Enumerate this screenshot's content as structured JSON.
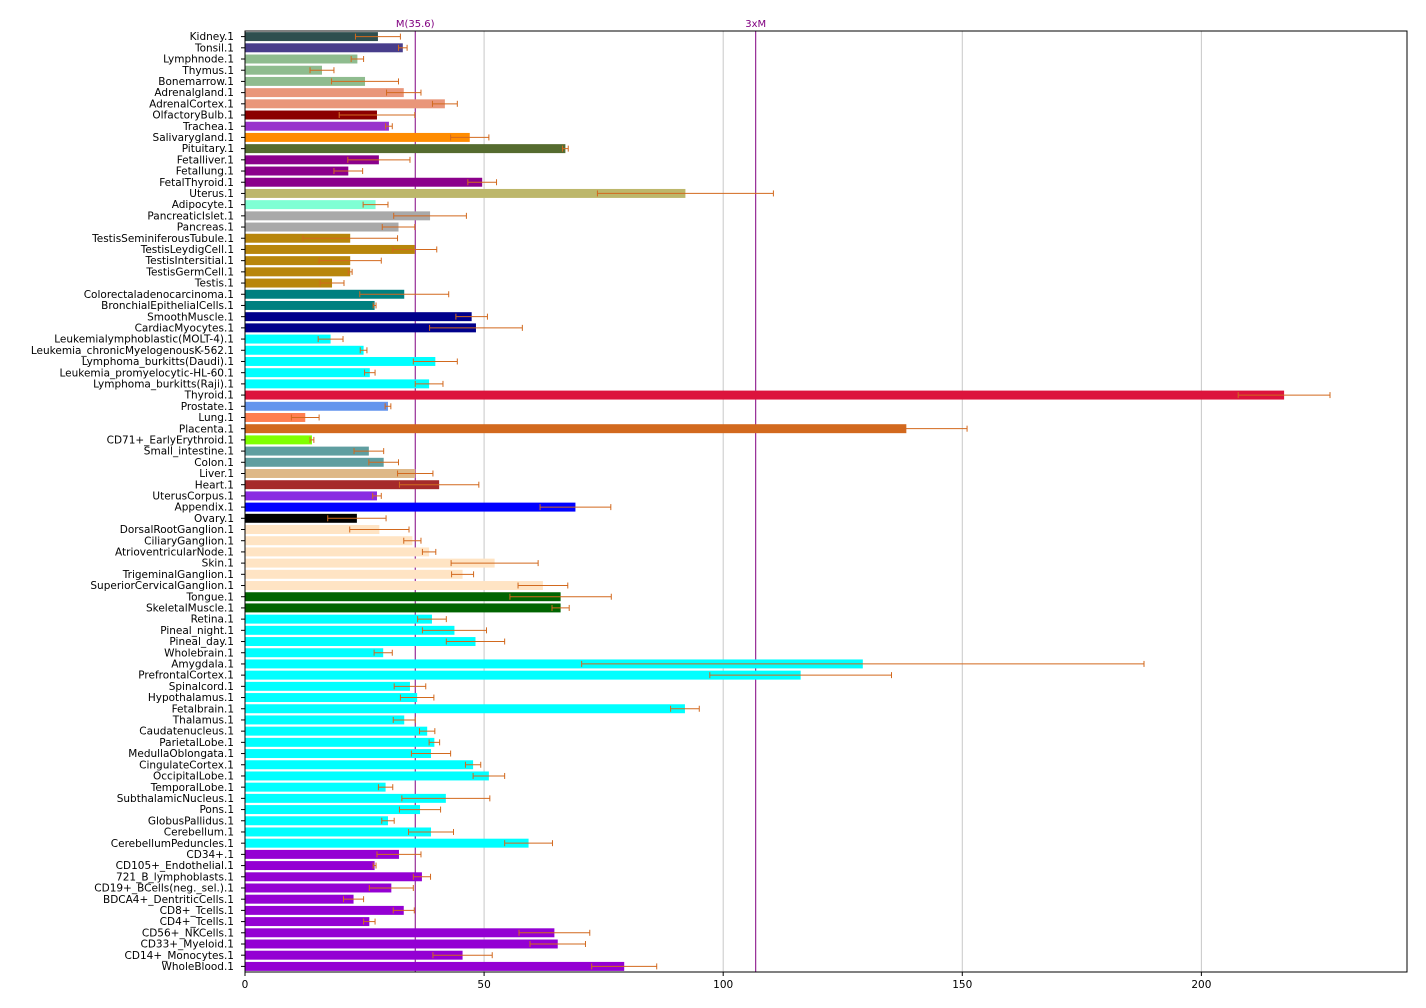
{
  "chart_data": {
    "type": "bar",
    "orientation": "horizontal",
    "title": "",
    "xlabel": "",
    "ylabel": "",
    "xlim": [
      0,
      243
    ],
    "xticks": [
      0,
      50,
      100,
      150,
      200
    ],
    "grid": "vertical",
    "legend": "none",
    "error_bar_color": "#d2691e",
    "reference_lines": [
      {
        "label": "M(35.6)",
        "value": 35.6,
        "color": "#800080"
      },
      {
        "label": "3xM",
        "value": 106.8,
        "color": "#800080"
      }
    ],
    "bars": [
      {
        "label": "Kidney.1",
        "value": 27.8,
        "err": 4.7,
        "color": "#2f4f4f"
      },
      {
        "label": "Tonsil.1",
        "value": 33.0,
        "err": 0.9,
        "color": "#483d8b"
      },
      {
        "label": "Lymphnode.1",
        "value": 23.5,
        "err": 1.3,
        "color": "#8fbc8f"
      },
      {
        "label": "Thymus.1",
        "value": 16.1,
        "err": 2.5,
        "color": "#8fbc8f"
      },
      {
        "label": "Bonemarrow.1",
        "value": 25.1,
        "err": 7.0,
        "color": "#8fbc8f"
      },
      {
        "label": "Adrenalgland.1",
        "value": 33.2,
        "err": 3.6,
        "color": "#e9967a"
      },
      {
        "label": "AdrenalCortex.1",
        "value": 41.8,
        "err": 2.6,
        "color": "#e9967a"
      },
      {
        "label": "OlfactoryBulb.1",
        "value": 27.6,
        "err": 7.9,
        "color": "#8b0000"
      },
      {
        "label": "Trachea.1",
        "value": 30.1,
        "err": 0.7,
        "color": "#9932cc"
      },
      {
        "label": "Salivarygland.1",
        "value": 47.0,
        "err": 4.0,
        "color": "#ff8c00"
      },
      {
        "label": "Pituitary.1",
        "value": 67.0,
        "err": 0.6,
        "color": "#556b2f"
      },
      {
        "label": "Fetalliver.1",
        "value": 28.0,
        "err": 6.5,
        "color": "#8b008b"
      },
      {
        "label": "Fetallung.1",
        "value": 21.6,
        "err": 3.0,
        "color": "#8b008b"
      },
      {
        "label": "FetalThyroid.1",
        "value": 49.6,
        "err": 3.0,
        "color": "#8b008b"
      },
      {
        "label": "Uterus.1",
        "value": 92.1,
        "err": 18.4,
        "color": "#bdb76b"
      },
      {
        "label": "Adipocyte.1",
        "value": 27.3,
        "err": 2.6,
        "color": "#7fffd4"
      },
      {
        "label": "PancreaticIslet.1",
        "value": 38.7,
        "err": 7.6,
        "color": "#a9a9a9"
      },
      {
        "label": "Pancreas.1",
        "value": 32.1,
        "err": 3.4,
        "color": "#a9a9a9"
      },
      {
        "label": "TestisSeminiferousTubule.1",
        "value": 22.0,
        "err": 9.9,
        "color": "#b8860b"
      },
      {
        "label": "TestisLeydigCell.1",
        "value": 35.5,
        "err": 4.6,
        "color": "#b8860b"
      },
      {
        "label": "TestisIntersitial.1",
        "value": 22.0,
        "err": 6.5,
        "color": "#b8860b"
      },
      {
        "label": "TestisGermCell.1",
        "value": 22.0,
        "err": 0.4,
        "color": "#b8860b"
      },
      {
        "label": "Testis.1",
        "value": 18.2,
        "err": 2.5,
        "color": "#b8860b"
      },
      {
        "label": "Colorectaladenocarcinoma.1",
        "value": 33.3,
        "err": 9.3,
        "color": "#008080"
      },
      {
        "label": "BronchialEpithelialCells.1",
        "value": 27.1,
        "err": 0.3,
        "color": "#008080"
      },
      {
        "label": "SmoothMuscle.1",
        "value": 47.4,
        "err": 3.3,
        "color": "#00008b"
      },
      {
        "label": "CardiacMyocytes.1",
        "value": 48.3,
        "err": 9.7,
        "color": "#00008b"
      },
      {
        "label": "Leukemialymphoblastic(MOLT-4).1",
        "value": 17.9,
        "err": 2.6,
        "color": "#00ffff"
      },
      {
        "label": "Leukemia_chronicMyelogenousK-562.1",
        "value": 24.8,
        "err": 0.7,
        "color": "#00ffff"
      },
      {
        "label": "Lymphoma_burkitts(Daudi).1",
        "value": 39.8,
        "err": 4.6,
        "color": "#00ffff"
      },
      {
        "label": "Leukemia_promyelocytic-HL-60.1",
        "value": 26.1,
        "err": 1.1,
        "color": "#00ffff"
      },
      {
        "label": "Lymphoma_burkitts(Raji).1",
        "value": 38.5,
        "err": 2.9,
        "color": "#00ffff"
      },
      {
        "label": "Thyroid.1",
        "value": 217.3,
        "err": 9.6,
        "color": "#dc143c"
      },
      {
        "label": "Prostate.1",
        "value": 29.9,
        "err": 0.6,
        "color": "#6495ed"
      },
      {
        "label": "Lung.1",
        "value": 12.6,
        "err": 2.9,
        "color": "#ff7f50"
      },
      {
        "label": "Placenta.1",
        "value": 138.3,
        "err": 12.7,
        "color": "#d2691e"
      },
      {
        "label": "CD71+_EarlyErythroid.1",
        "value": 14.0,
        "err": 0.4,
        "color": "#7fff00"
      },
      {
        "label": "Small_intestine.1",
        "value": 25.9,
        "err": 3.1,
        "color": "#5f9ea0"
      },
      {
        "label": "Colon.1",
        "value": 29.0,
        "err": 3.1,
        "color": "#5f9ea0"
      },
      {
        "label": "Liver.1",
        "value": 35.6,
        "err": 3.7,
        "color": "#deb887"
      },
      {
        "label": "Heart.1",
        "value": 40.6,
        "err": 8.3,
        "color": "#a52a2a"
      },
      {
        "label": "UterusCorpus.1",
        "value": 27.6,
        "err": 0.9,
        "color": "#8a2be2"
      },
      {
        "label": "Appendix.1",
        "value": 69.1,
        "err": 7.4,
        "color": "#0000ff"
      },
      {
        "label": "Ovary.1",
        "value": 23.4,
        "err": 6.1,
        "color": "#000000"
      },
      {
        "label": "DorsalRootGanglion.1",
        "value": 28.1,
        "err": 6.2,
        "color": "#ffe4c4"
      },
      {
        "label": "CiliaryGanglion.1",
        "value": 35.0,
        "err": 1.8,
        "color": "#ffe4c4"
      },
      {
        "label": "AtrioventricularNode.1",
        "value": 38.5,
        "err": 1.4,
        "color": "#ffe4c4"
      },
      {
        "label": "Skin.1",
        "value": 52.2,
        "err": 9.1,
        "color": "#ffe4c4"
      },
      {
        "label": "TrigeminalGanglion.1",
        "value": 45.5,
        "err": 2.3,
        "color": "#ffe4c4"
      },
      {
        "label": "SuperiorCervicalGanglion.1",
        "value": 62.3,
        "err": 5.2,
        "color": "#ffe4c4"
      },
      {
        "label": "Tongue.1",
        "value": 66.0,
        "err": 10.6,
        "color": "#006400"
      },
      {
        "label": "SkeletalMuscle.1",
        "value": 66.0,
        "err": 1.8,
        "color": "#006400"
      },
      {
        "label": "Retina.1",
        "value": 39.1,
        "err": 3.0,
        "color": "#00ffff"
      },
      {
        "label": "Pineal_night.1",
        "value": 43.8,
        "err": 6.7,
        "color": "#00ffff"
      },
      {
        "label": "Pineal_day.1",
        "value": 48.2,
        "err": 6.1,
        "color": "#00ffff"
      },
      {
        "label": "Wholebrain.1",
        "value": 28.9,
        "err": 1.9,
        "color": "#00ffff"
      },
      {
        "label": "Amygdala.1",
        "value": 129.2,
        "err": 58.8,
        "color": "#00ffff"
      },
      {
        "label": "PrefrontalCortex.1",
        "value": 116.2,
        "err": 19.0,
        "color": "#00ffff"
      },
      {
        "label": "Spinalcord.1",
        "value": 34.5,
        "err": 3.3,
        "color": "#00ffff"
      },
      {
        "label": "Hypothalamus.1",
        "value": 36.0,
        "err": 3.5,
        "color": "#00ffff"
      },
      {
        "label": "Fetalbrain.1",
        "value": 92.0,
        "err": 3.0,
        "color": "#00ffff"
      },
      {
        "label": "Thalamus.1",
        "value": 33.3,
        "err": 2.3,
        "color": "#00ffff"
      },
      {
        "label": "Caudatenucleus.1",
        "value": 38.1,
        "err": 1.6,
        "color": "#00ffff"
      },
      {
        "label": "ParietalLobe.1",
        "value": 39.6,
        "err": 1.1,
        "color": "#00ffff"
      },
      {
        "label": "MedullaOblongata.1",
        "value": 38.9,
        "err": 4.1,
        "color": "#00ffff"
      },
      {
        "label": "CingulateCortex.1",
        "value": 47.7,
        "err": 1.6,
        "color": "#00ffff"
      },
      {
        "label": "OccipitalLobe.1",
        "value": 51.0,
        "err": 3.3,
        "color": "#00ffff"
      },
      {
        "label": "TemporalLobe.1",
        "value": 29.4,
        "err": 1.5,
        "color": "#00ffff"
      },
      {
        "label": "SubthalamicNucleus.1",
        "value": 42.0,
        "err": 9.2,
        "color": "#00ffff"
      },
      {
        "label": "Pons.1",
        "value": 36.6,
        "err": 4.3,
        "color": "#00ffff"
      },
      {
        "label": "GlobusPallidus.1",
        "value": 29.9,
        "err": 1.3,
        "color": "#00ffff"
      },
      {
        "label": "Cerebellum.1",
        "value": 38.9,
        "err": 4.7,
        "color": "#00ffff"
      },
      {
        "label": "CerebellumPeduncles.1",
        "value": 59.3,
        "err": 5.0,
        "color": "#00ffff"
      },
      {
        "label": "CD34+.1",
        "value": 32.2,
        "err": 4.6,
        "color": "#9400d3"
      },
      {
        "label": "CD105+_Endothelial.1",
        "value": 27.1,
        "err": 0.3,
        "color": "#9400d3"
      },
      {
        "label": "721_B_lymphoblasts.1",
        "value": 37.0,
        "err": 1.8,
        "color": "#9400d3"
      },
      {
        "label": "CD19+_BCells(neg._sel.).1",
        "value": 30.6,
        "err": 4.6,
        "color": "#9400d3"
      },
      {
        "label": "BDCA4+_DentriticCells.1",
        "value": 22.7,
        "err": 2.1,
        "color": "#9400d3"
      },
      {
        "label": "CD8+_Tcells.1",
        "value": 33.2,
        "err": 2.2,
        "color": "#9400d3"
      },
      {
        "label": "CD4+_Tcells.1",
        "value": 26.0,
        "err": 1.2,
        "color": "#9400d3"
      },
      {
        "label": "CD56+_NKCells.1",
        "value": 64.7,
        "err": 7.4,
        "color": "#9400d3"
      },
      {
        "label": "CD33+_Myeloid.1",
        "value": 65.4,
        "err": 5.8,
        "color": "#9400d3"
      },
      {
        "label": "CD14+_Monocytes.1",
        "value": 45.5,
        "err": 6.2,
        "color": "#9400d3"
      },
      {
        "label": "WholeBlood.1",
        "value": 79.3,
        "err": 6.8,
        "color": "#9400d3"
      }
    ]
  }
}
